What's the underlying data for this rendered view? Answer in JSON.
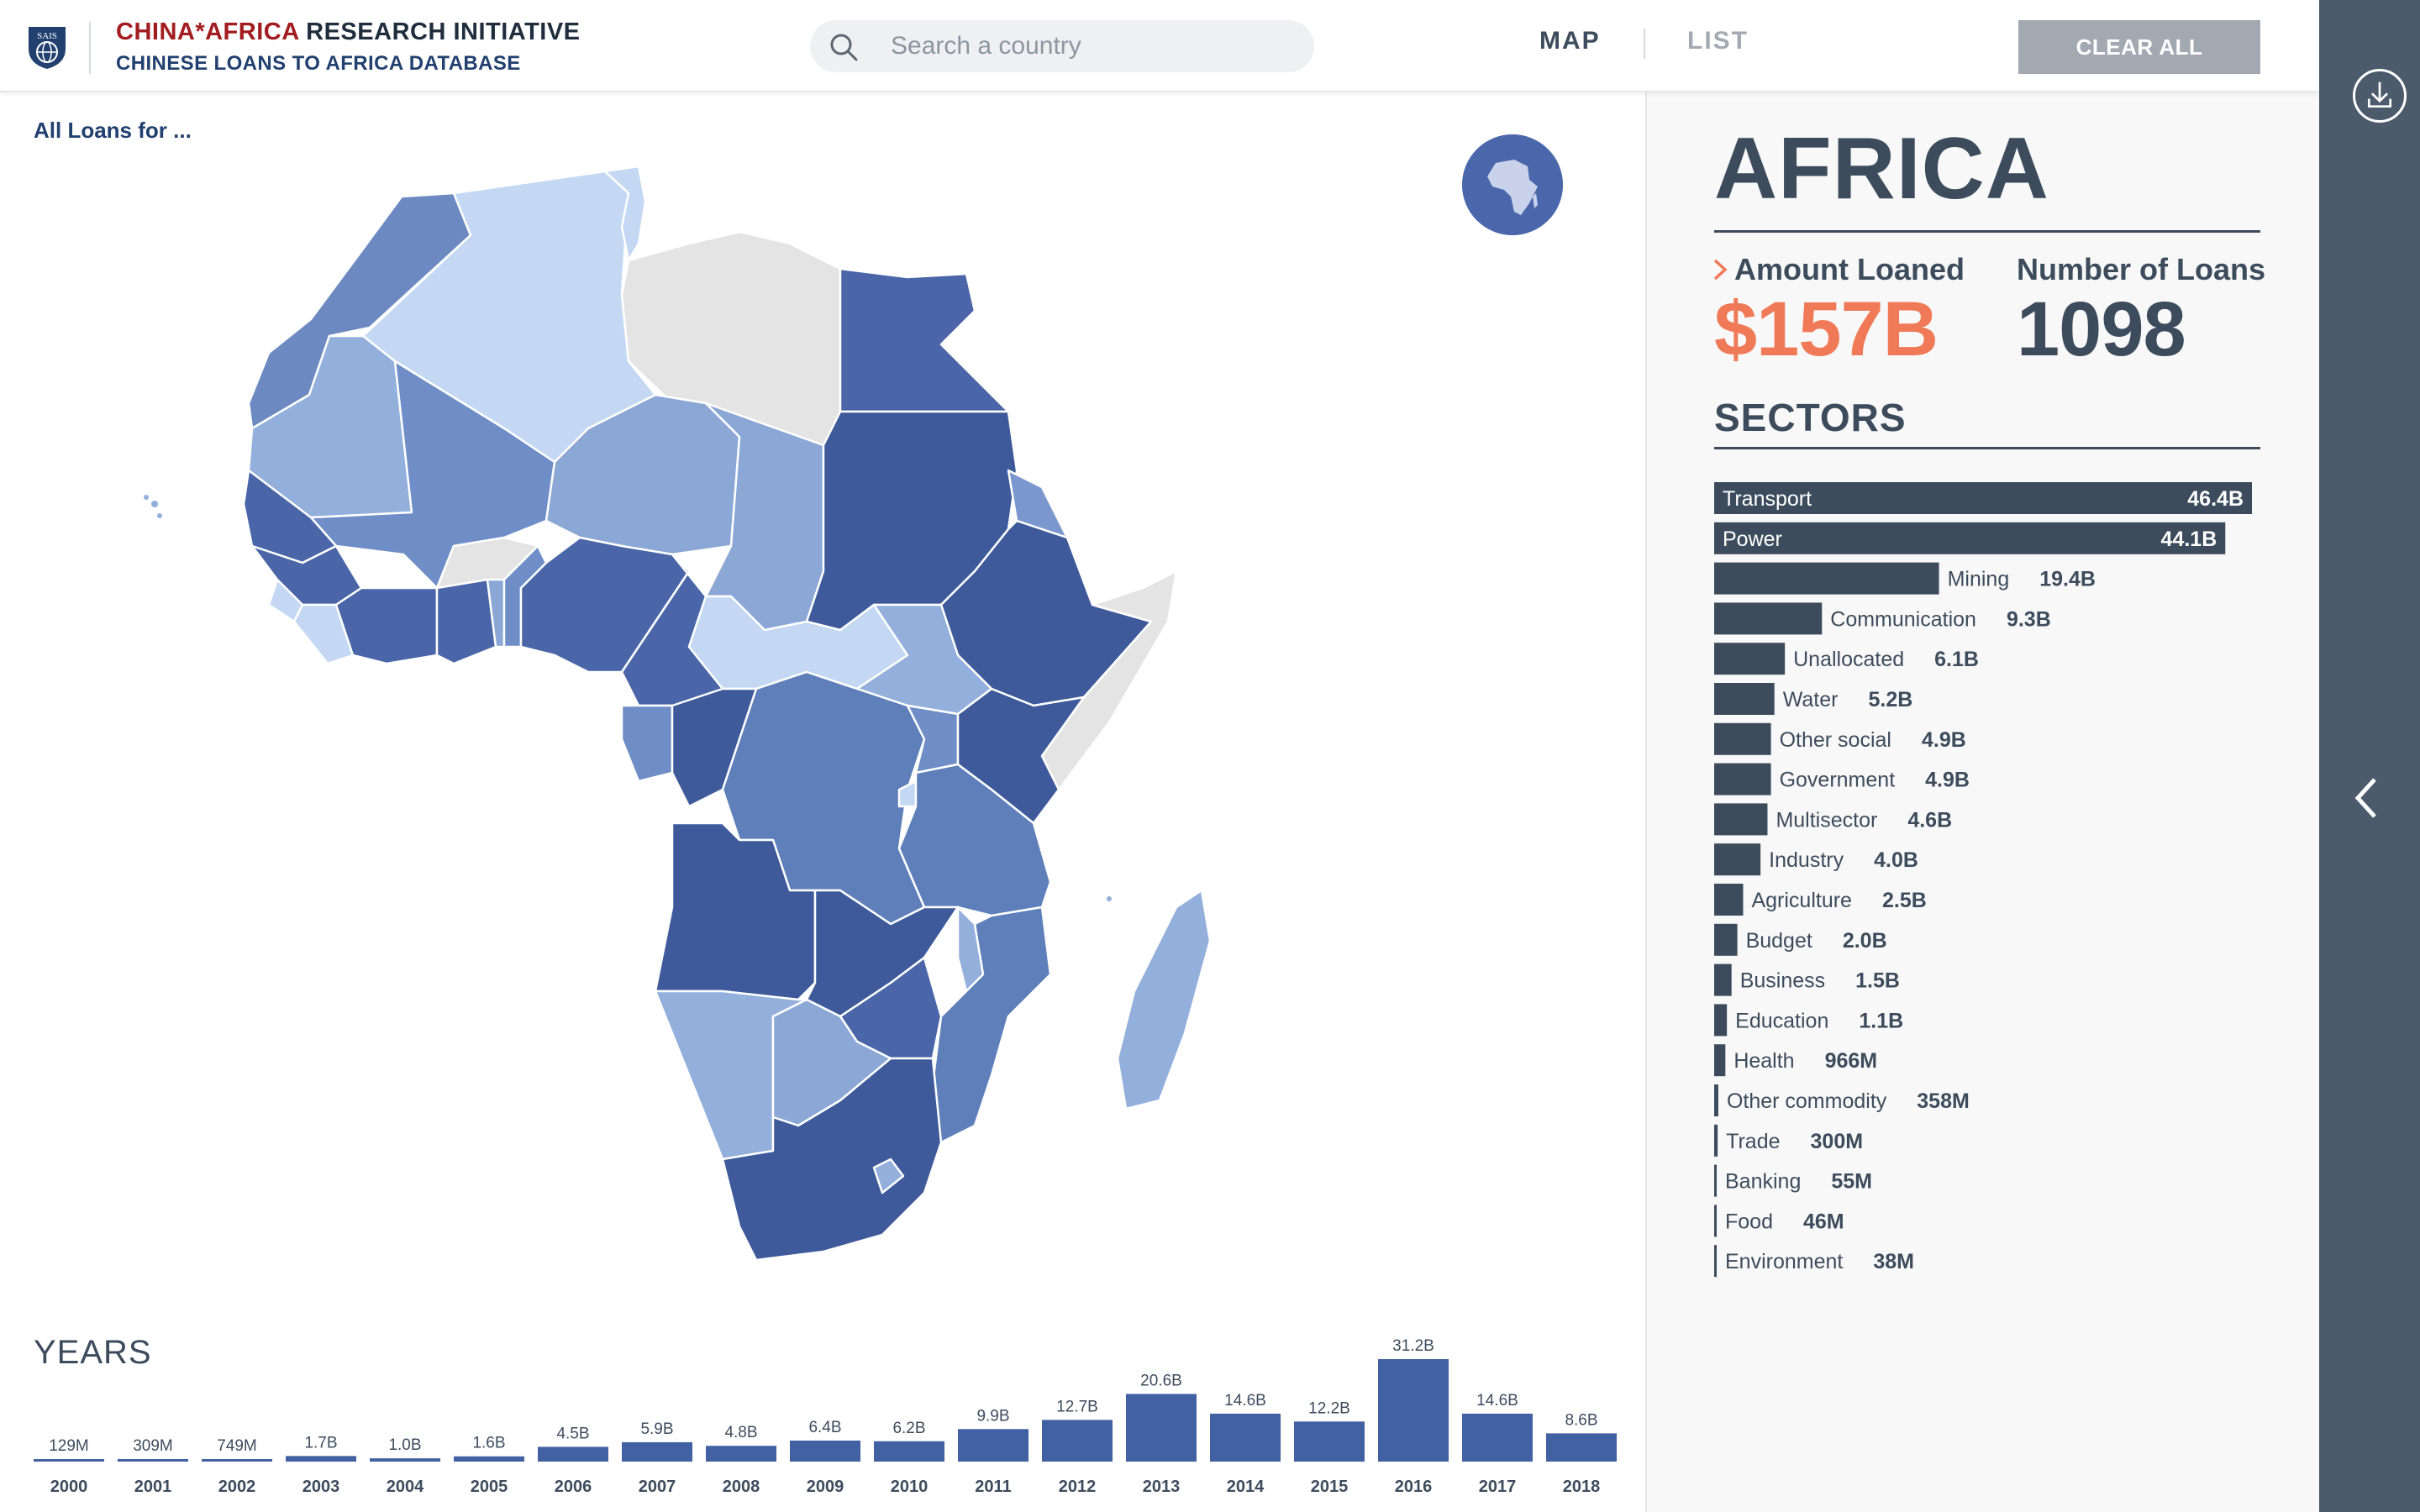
{
  "header": {
    "brand_line1_red": "CHINA*AFRICA",
    "brand_line1_rest": " RESEARCH INITIATIVE",
    "brand_line2": "CHINESE LOANS TO AFRICA DATABASE",
    "logo_text": "SAIS",
    "search_placeholder": "Search a country",
    "tab_map": "MAP",
    "tab_list": "LIST",
    "clear_all": "CLEAR ALL"
  },
  "map": {
    "caption": "All Loans for ..."
  },
  "panel": {
    "region": "AFRICA",
    "amount_label": "Amount Loaned",
    "amount_value": "$157B",
    "count_label": "Number of Loans",
    "count_value": "1098",
    "sectors_title": "SECTORS"
  },
  "colors": {
    "bar_dark": "#3d4c5d",
    "accent": "#f07a57",
    "map_blue": "#3f5b9c",
    "year_bar": "#4261a3"
  },
  "chart_data": [
    {
      "type": "bar",
      "orientation": "horizontal",
      "categories": [
        "Transport",
        "Power",
        "Mining",
        "Communication",
        "Unallocated",
        "Water",
        "Other social",
        "Government",
        "Multisector",
        "Industry",
        "Agriculture",
        "Budget",
        "Business",
        "Education",
        "Health",
        "Other commodity",
        "Trade",
        "Banking",
        "Food",
        "Environment"
      ],
      "values": [
        46.4,
        44.1,
        19.4,
        9.3,
        6.1,
        5.2,
        4.9,
        4.9,
        4.6,
        4.0,
        2.5,
        2.0,
        1.5,
        1.1,
        0.966,
        0.358,
        0.3,
        0.055,
        0.046,
        0.038
      ],
      "labels": [
        "46.4B",
        "44.1B",
        "19.4B",
        "9.3B",
        "6.1B",
        "5.2B",
        "4.9B",
        "4.9B",
        "4.6B",
        "4.0B",
        "2.5B",
        "2.0B",
        "1.5B",
        "1.1B",
        "966M",
        "358M",
        "300M",
        "55M",
        "46M",
        "38M"
      ],
      "unit": "billion USD"
    },
    {
      "type": "bar",
      "title": "YEARS",
      "categories": [
        "2000",
        "2001",
        "2002",
        "2003",
        "2004",
        "2005",
        "2006",
        "2007",
        "2008",
        "2009",
        "2010",
        "2011",
        "2012",
        "2013",
        "2014",
        "2015",
        "2016",
        "2017",
        "2018"
      ],
      "values": [
        0.129,
        0.309,
        0.749,
        1.7,
        1.0,
        1.6,
        4.5,
        5.9,
        4.8,
        6.4,
        6.2,
        9.9,
        12.7,
        20.6,
        14.6,
        12.2,
        31.2,
        14.6,
        8.6
      ],
      "labels": [
        "129M",
        "309M",
        "749M",
        "1.7B",
        "1.0B",
        "1.6B",
        "4.5B",
        "5.9B",
        "4.8B",
        "6.4B",
        "6.2B",
        "9.9B",
        "12.7B",
        "20.6B",
        "14.6B",
        "12.2B",
        "31.2B",
        "14.6B",
        "8.6B"
      ],
      "unit": "billion USD"
    }
  ]
}
